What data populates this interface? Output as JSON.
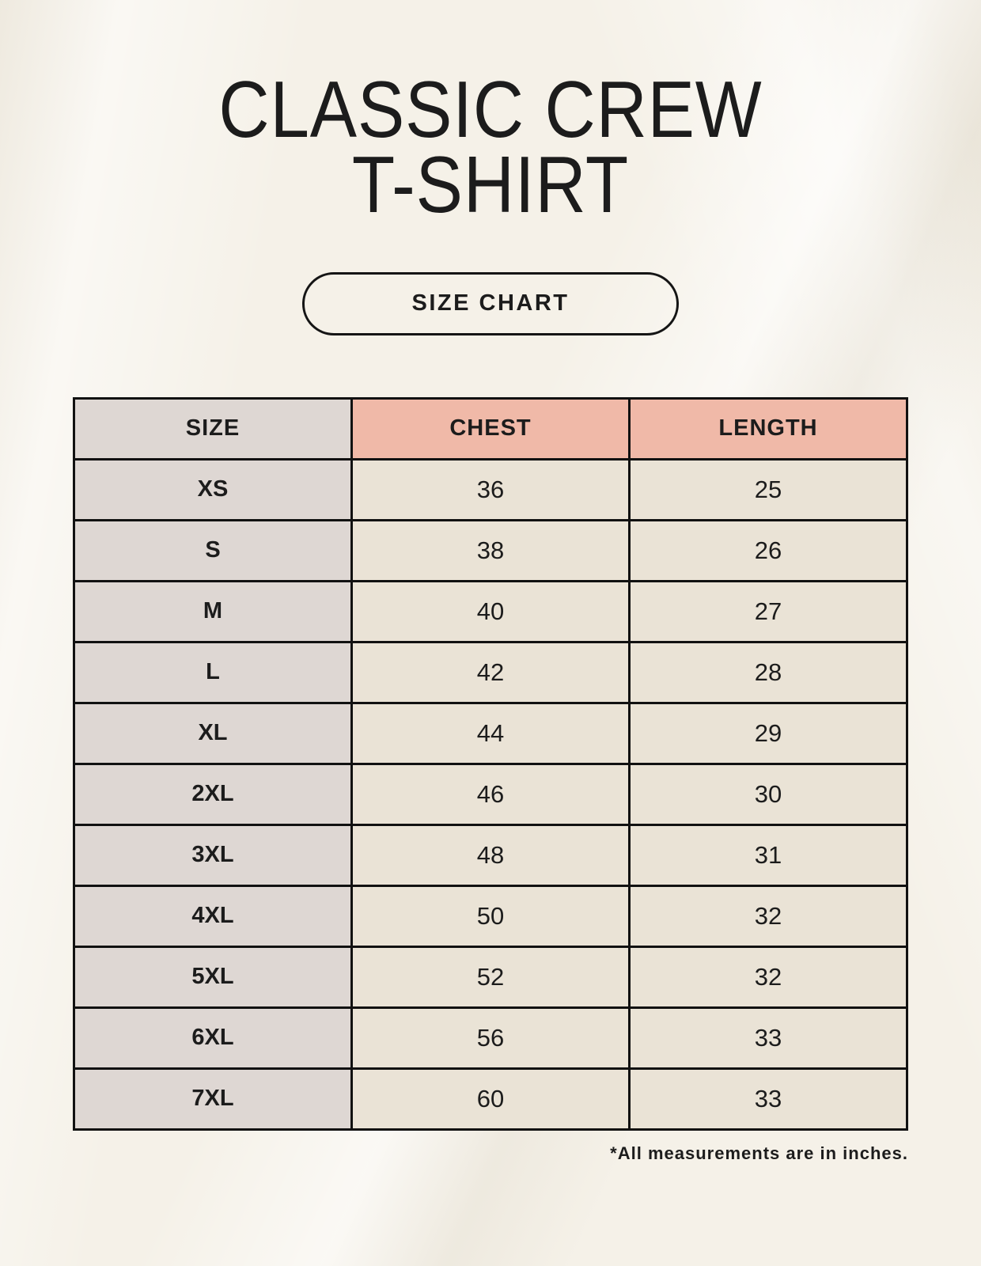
{
  "header": {
    "title_line1": "CLASSIC CREW",
    "title_line2": "T-SHIRT",
    "badge_label": "SIZE CHART"
  },
  "table": {
    "columns": [
      "SIZE",
      "CHEST",
      "LENGTH"
    ],
    "rows": [
      {
        "size": "XS",
        "chest": "36",
        "length": "25"
      },
      {
        "size": "S",
        "chest": "38",
        "length": "26"
      },
      {
        "size": "M",
        "chest": "40",
        "length": "27"
      },
      {
        "size": "L",
        "chest": "42",
        "length": "28"
      },
      {
        "size": "XL",
        "chest": "44",
        "length": "29"
      },
      {
        "size": "2XL",
        "chest": "46",
        "length": "30"
      },
      {
        "size": "3XL",
        "chest": "48",
        "length": "31"
      },
      {
        "size": "4XL",
        "chest": "50",
        "length": "32"
      },
      {
        "size": "5XL",
        "chest": "52",
        "length": "32"
      },
      {
        "size": "6XL",
        "chest": "56",
        "length": "33"
      },
      {
        "size": "7XL",
        "chest": "60",
        "length": "33"
      }
    ]
  },
  "footnote": "*All measurements are in inches.",
  "colors": {
    "page_background": "#f5f1e8",
    "label_cell_background": "#ded7d3",
    "header_accent_background": "#f0b9a8",
    "value_cell_background": "#eae3d6",
    "border": "#111111",
    "text": "#1c1c1c"
  }
}
